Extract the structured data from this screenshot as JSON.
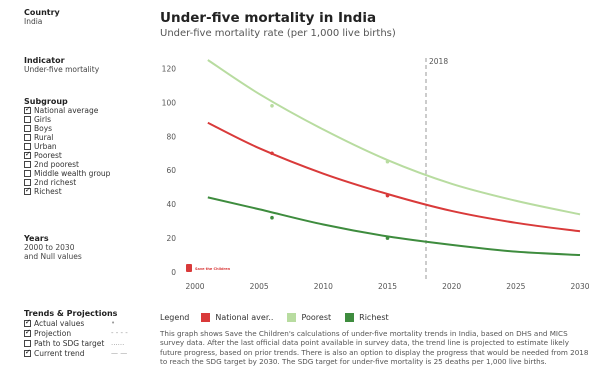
{
  "sidebar": {
    "country": {
      "title": "Country",
      "value": "India"
    },
    "indicator": {
      "title": "Indicator",
      "value": "Under-five mortality"
    },
    "subgroup": {
      "title": "Subgroup",
      "items": [
        {
          "label": "National average",
          "checked": true
        },
        {
          "label": "Girls",
          "checked": false
        },
        {
          "label": "Boys",
          "checked": false
        },
        {
          "label": "Rural",
          "checked": false
        },
        {
          "label": "Urban",
          "checked": false
        },
        {
          "label": "Poorest",
          "checked": true
        },
        {
          "label": "2nd poorest",
          "checked": false
        },
        {
          "label": "Middle wealth group",
          "checked": false
        },
        {
          "label": "2nd richest",
          "checked": false
        },
        {
          "label": "Richest",
          "checked": true
        }
      ]
    },
    "years": {
      "title": "Years",
      "line1": "2000 to 2030",
      "line2": "and Null values"
    },
    "trends": {
      "title": "Trends & Projections",
      "items": [
        {
          "label": "Actual values",
          "checked": true,
          "symbol": "•"
        },
        {
          "label": "Projection",
          "checked": true,
          "symbol": "- - - -"
        },
        {
          "label": "Path to SDG target",
          "checked": false,
          "symbol": "......"
        },
        {
          "label": "Current trend",
          "checked": true,
          "symbol": "— —"
        }
      ]
    }
  },
  "header": {
    "title": "Under-five mortality in India",
    "subtitle": "Under-five mortality rate (per 1,000 live births)"
  },
  "chart_data": {
    "type": "line",
    "xlim": [
      2000,
      2030
    ],
    "ylim": [
      0,
      125
    ],
    "x_ticks": [
      2000,
      2005,
      2010,
      2015,
      2020,
      2025,
      2030
    ],
    "y_ticks": [
      0,
      20,
      40,
      60,
      80,
      100,
      120
    ],
    "marker_line": {
      "x": 2018,
      "label": "2018"
    },
    "series": [
      {
        "name": "National aver..",
        "color": "#d93a3a",
        "x": [
          2001,
          2005,
          2010,
          2015,
          2020,
          2025,
          2030
        ],
        "values": [
          88,
          73,
          58,
          46,
          36,
          29,
          24
        ],
        "points": [
          {
            "x": 2006,
            "y": 70
          },
          {
            "x": 2015,
            "y": 45
          }
        ]
      },
      {
        "name": "Poorest",
        "color": "#b8dca0",
        "x": [
          2001,
          2005,
          2010,
          2015,
          2020,
          2025,
          2030
        ],
        "values": [
          125,
          105,
          84,
          66,
          52,
          42,
          34
        ],
        "points": [
          {
            "x": 2006,
            "y": 98
          },
          {
            "x": 2015,
            "y": 65
          }
        ]
      },
      {
        "name": "Richest",
        "color": "#3e8c3e",
        "x": [
          2001,
          2005,
          2010,
          2015,
          2020,
          2025,
          2030
        ],
        "values": [
          44,
          37,
          28,
          21,
          16,
          12,
          10
        ],
        "points": [
          {
            "x": 2006,
            "y": 32
          },
          {
            "x": 2015,
            "y": 20
          }
        ]
      }
    ],
    "grid": false
  },
  "legend": {
    "label": "Legend"
  },
  "logo_text": "Save the Children",
  "description": "This graph shows Save the Children's calculations of under-five mortality trends in India, based on DHS and MICS survey data. After the last official data point available in survey data, the trend line is projected to estimate likely future progress, based on prior trends. There is also an option to display the progress that would be needed from 2018 to reach the SDG target by 2030. The SDG target for under-five mortality is 25 deaths per 1,000 live births."
}
